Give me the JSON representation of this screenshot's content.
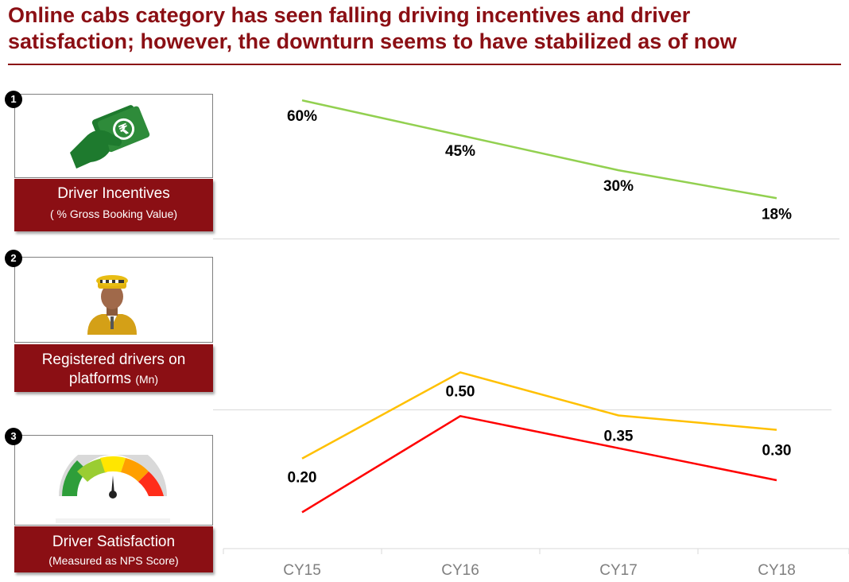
{
  "title": {
    "line1": "Online cabs category has seen falling driving incentives and driver",
    "line2": "satisfaction; however, the downturn seems to have stabilized as of now"
  },
  "panels": [
    {
      "number": "1",
      "label": "Driver Incentives",
      "sublabel": "( % Gross Booking Value)",
      "icon": "money-hand-icon"
    },
    {
      "number": "2",
      "label": "Registered drivers on",
      "label2": "platforms",
      "sublabel": "(Mn)",
      "icon": "cab-driver-icon"
    },
    {
      "number": "3",
      "label": "Driver Satisfaction",
      "sublabel": "(Measured as NPS Score)",
      "icon": "satisfaction-gauge-icon"
    }
  ],
  "colors": {
    "brand": "#8b0f14",
    "incentives_line": "#92d050",
    "drivers_line": "#ffc000",
    "satisfaction_line": "#ff0000"
  },
  "chart_data": [
    {
      "type": "line",
      "categories": [
        "CY15",
        "CY16",
        "CY17",
        "CY18"
      ],
      "series": [
        {
          "values": [
            60,
            45,
            30,
            18
          ]
        }
      ],
      "value_labels": [
        "60%",
        "45%",
        "30%",
        "18%"
      ],
      "ylim": [
        0,
        100
      ]
    },
    {
      "type": "line",
      "categories": [
        "CY15",
        "CY16",
        "CY17",
        "CY18"
      ],
      "series": [
        {
          "values": [
            0.2,
            0.5,
            0.35,
            0.3
          ]
        }
      ],
      "value_labels": [
        "0.20",
        "0.50",
        "0.35",
        "0.30"
      ],
      "ylim": [
        0,
        0.7
      ]
    },
    {
      "type": "line",
      "categories": [
        "CY15",
        "CY16",
        "CY17",
        "CY18"
      ],
      "series": [
        {
          "values": [
            2,
            5,
            4,
            3
          ]
        }
      ],
      "value_labels": [],
      "ylim": [
        0,
        6
      ]
    }
  ]
}
